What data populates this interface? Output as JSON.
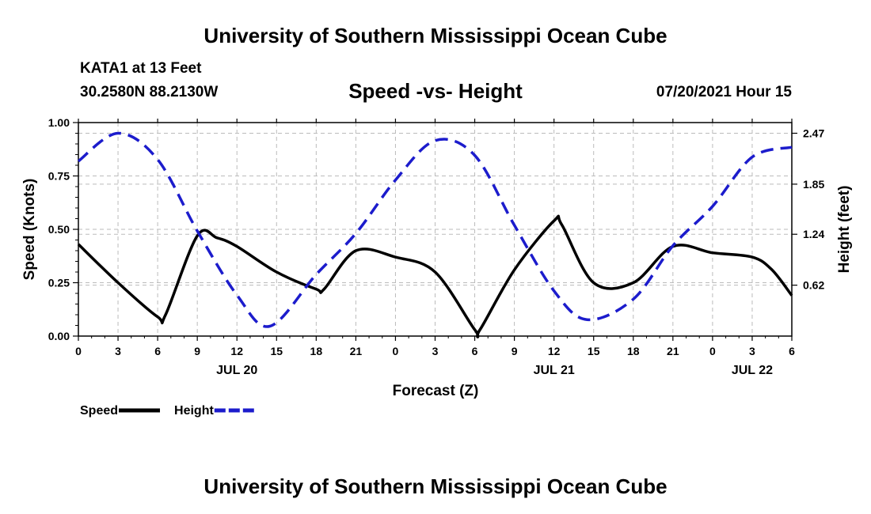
{
  "page": {
    "title_top": "University of Southern Mississippi Ocean Cube",
    "title_bottom": "University of Southern Mississippi Ocean Cube",
    "station_name": "KATA1 at 13 Feet",
    "station_coords": "30.2580N  88.2130W",
    "run_time": "07/20/2021 Hour 15"
  },
  "chart_data": {
    "type": "line",
    "title": "Speed -vs- Height",
    "xlabel": "Forecast (Z)",
    "ylabel": "Speed (Knots)",
    "y2label": "Height (feet)",
    "x_unit": "hours since 2021-07-20 00Z",
    "xlim": [
      0,
      54
    ],
    "ylim": [
      0,
      1.0
    ],
    "y2lim": [
      0.0,
      2.6
    ],
    "x_ticks": [
      0,
      3,
      6,
      9,
      12,
      15,
      18,
      21,
      24,
      27,
      30,
      33,
      36,
      39,
      42,
      45,
      48,
      51,
      54
    ],
    "x_tick_labels": [
      "0",
      "3",
      "6",
      "9",
      "12",
      "15",
      "18",
      "21",
      "0",
      "3",
      "6",
      "9",
      "12",
      "15",
      "18",
      "21",
      "0",
      "3",
      "6"
    ],
    "date_labels": [
      {
        "x": 12,
        "label": "JUL 20"
      },
      {
        "x": 36,
        "label": "JUL 21"
      },
      {
        "x": 51,
        "label": "JUL 22"
      }
    ],
    "y_ticks": [
      0,
      0.25,
      0.5,
      0.75,
      1.0
    ],
    "y_tick_labels": [
      "0.00",
      "0.25",
      "0.50",
      "0.75",
      "1.00"
    ],
    "y2_ticks": [
      0.62,
      1.24,
      1.85,
      2.47
    ],
    "y2_tick_labels": [
      "0.62",
      "1.24",
      "1.85",
      "2.47"
    ],
    "grid": true,
    "legend_position": "bottom-left",
    "series": [
      {
        "name": "Speed",
        "axis": "left",
        "color": "#000000",
        "style": "solid",
        "x": [
          0,
          3,
          6,
          6.6,
          9,
          10.5,
          12,
          15,
          18,
          18.6,
          21,
          24,
          27,
          30,
          30.4,
          33,
          36,
          36.6,
          39,
          42,
          45,
          48,
          51,
          52.5,
          54
        ],
        "values": [
          0.43,
          0.25,
          0.09,
          0.1,
          0.47,
          0.46,
          0.42,
          0.3,
          0.22,
          0.22,
          0.4,
          0.37,
          0.3,
          0.03,
          0.03,
          0.31,
          0.54,
          0.52,
          0.25,
          0.25,
          0.42,
          0.39,
          0.37,
          0.31,
          0.19
        ]
      },
      {
        "name": "Height",
        "axis": "right",
        "color": "#1c1ccc",
        "style": "dashed",
        "x": [
          0,
          3,
          6,
          9,
          12,
          14.5,
          18,
          21,
          24,
          27,
          30,
          33,
          36,
          38.5,
          42,
          45,
          48,
          51,
          54
        ],
        "values": [
          2.13,
          2.47,
          2.15,
          1.28,
          0.5,
          0.12,
          0.75,
          1.25,
          1.9,
          2.38,
          2.2,
          1.35,
          0.55,
          0.2,
          0.45,
          1.1,
          1.58,
          2.18,
          2.3
        ]
      }
    ]
  }
}
